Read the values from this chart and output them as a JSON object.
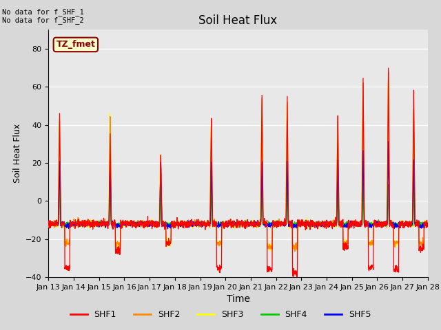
{
  "title": "Soil Heat Flux",
  "xlabel": "Time",
  "ylabel": "Soil Heat Flux",
  "ylim": [
    -40,
    90
  ],
  "yticks": [
    -40,
    -20,
    0,
    20,
    40,
    60,
    80
  ],
  "colors": {
    "SHF1": "#ff0000",
    "SHF2": "#ff8800",
    "SHF3": "#ffff00",
    "SHF4": "#00cc00",
    "SHF5": "#0000ff"
  },
  "annotation_text": "No data for f_SHF_1\nNo data for f_SHF_2",
  "box_label": "TZ_fmet",
  "box_color": "#ffffcc",
  "box_edge_color": "#8B0000",
  "box_text_color": "#8B0000",
  "n_days": 15,
  "start_day": 13,
  "pts_per_day": 144,
  "night_level_shf1": -12,
  "night_level_shf2": -12,
  "night_level_shf3": -12,
  "night_level_shf4": -12,
  "night_level_shf5": -12,
  "day_peaks_shf1": [
    47,
    0,
    35,
    0,
    25,
    0,
    45,
    0,
    57,
    55,
    0,
    45,
    65,
    70,
    58
  ],
  "day_peaks_shf2": [
    43,
    0,
    45,
    0,
    22,
    0,
    43,
    0,
    55,
    53,
    0,
    43,
    62,
    68,
    50
  ],
  "day_peaks_shf3": [
    42,
    0,
    50,
    0,
    27,
    0,
    42,
    0,
    56,
    54,
    0,
    42,
    60,
    67,
    47
  ],
  "day_peaks_shf4": [
    10,
    0,
    10,
    0,
    10,
    0,
    10,
    0,
    10,
    10,
    0,
    10,
    10,
    10,
    10
  ],
  "day_peaks_shf5": [
    22,
    0,
    22,
    0,
    21,
    0,
    21,
    0,
    21,
    21,
    0,
    21,
    27,
    32,
    22
  ],
  "trough_shf1": [
    -35,
    -14,
    -26,
    -14,
    -22,
    -14,
    -35,
    -14,
    -36,
    -38,
    -14,
    -24,
    -35,
    -36,
    -25
  ],
  "trough_shf2": [
    -22,
    -14,
    -23,
    -14,
    -22,
    -14,
    -22,
    -14,
    -24,
    -24,
    -14,
    -22,
    -22,
    -22,
    -22
  ],
  "trough_shf3": [
    -22,
    -14,
    -23,
    -14,
    -22,
    -14,
    -22,
    -14,
    -24,
    -25,
    -14,
    -22,
    -22,
    -22,
    -22
  ],
  "trough_shf4": [
    -12,
    -12,
    -12,
    -12,
    -12,
    -12,
    -12,
    -12,
    -12,
    -12,
    -12,
    -12,
    -12,
    -12,
    -12
  ],
  "trough_shf5": [
    -13,
    -13,
    -13,
    -13,
    -13,
    -13,
    -13,
    -13,
    -13,
    -13,
    -13,
    -13,
    -13,
    -13,
    -13
  ]
}
